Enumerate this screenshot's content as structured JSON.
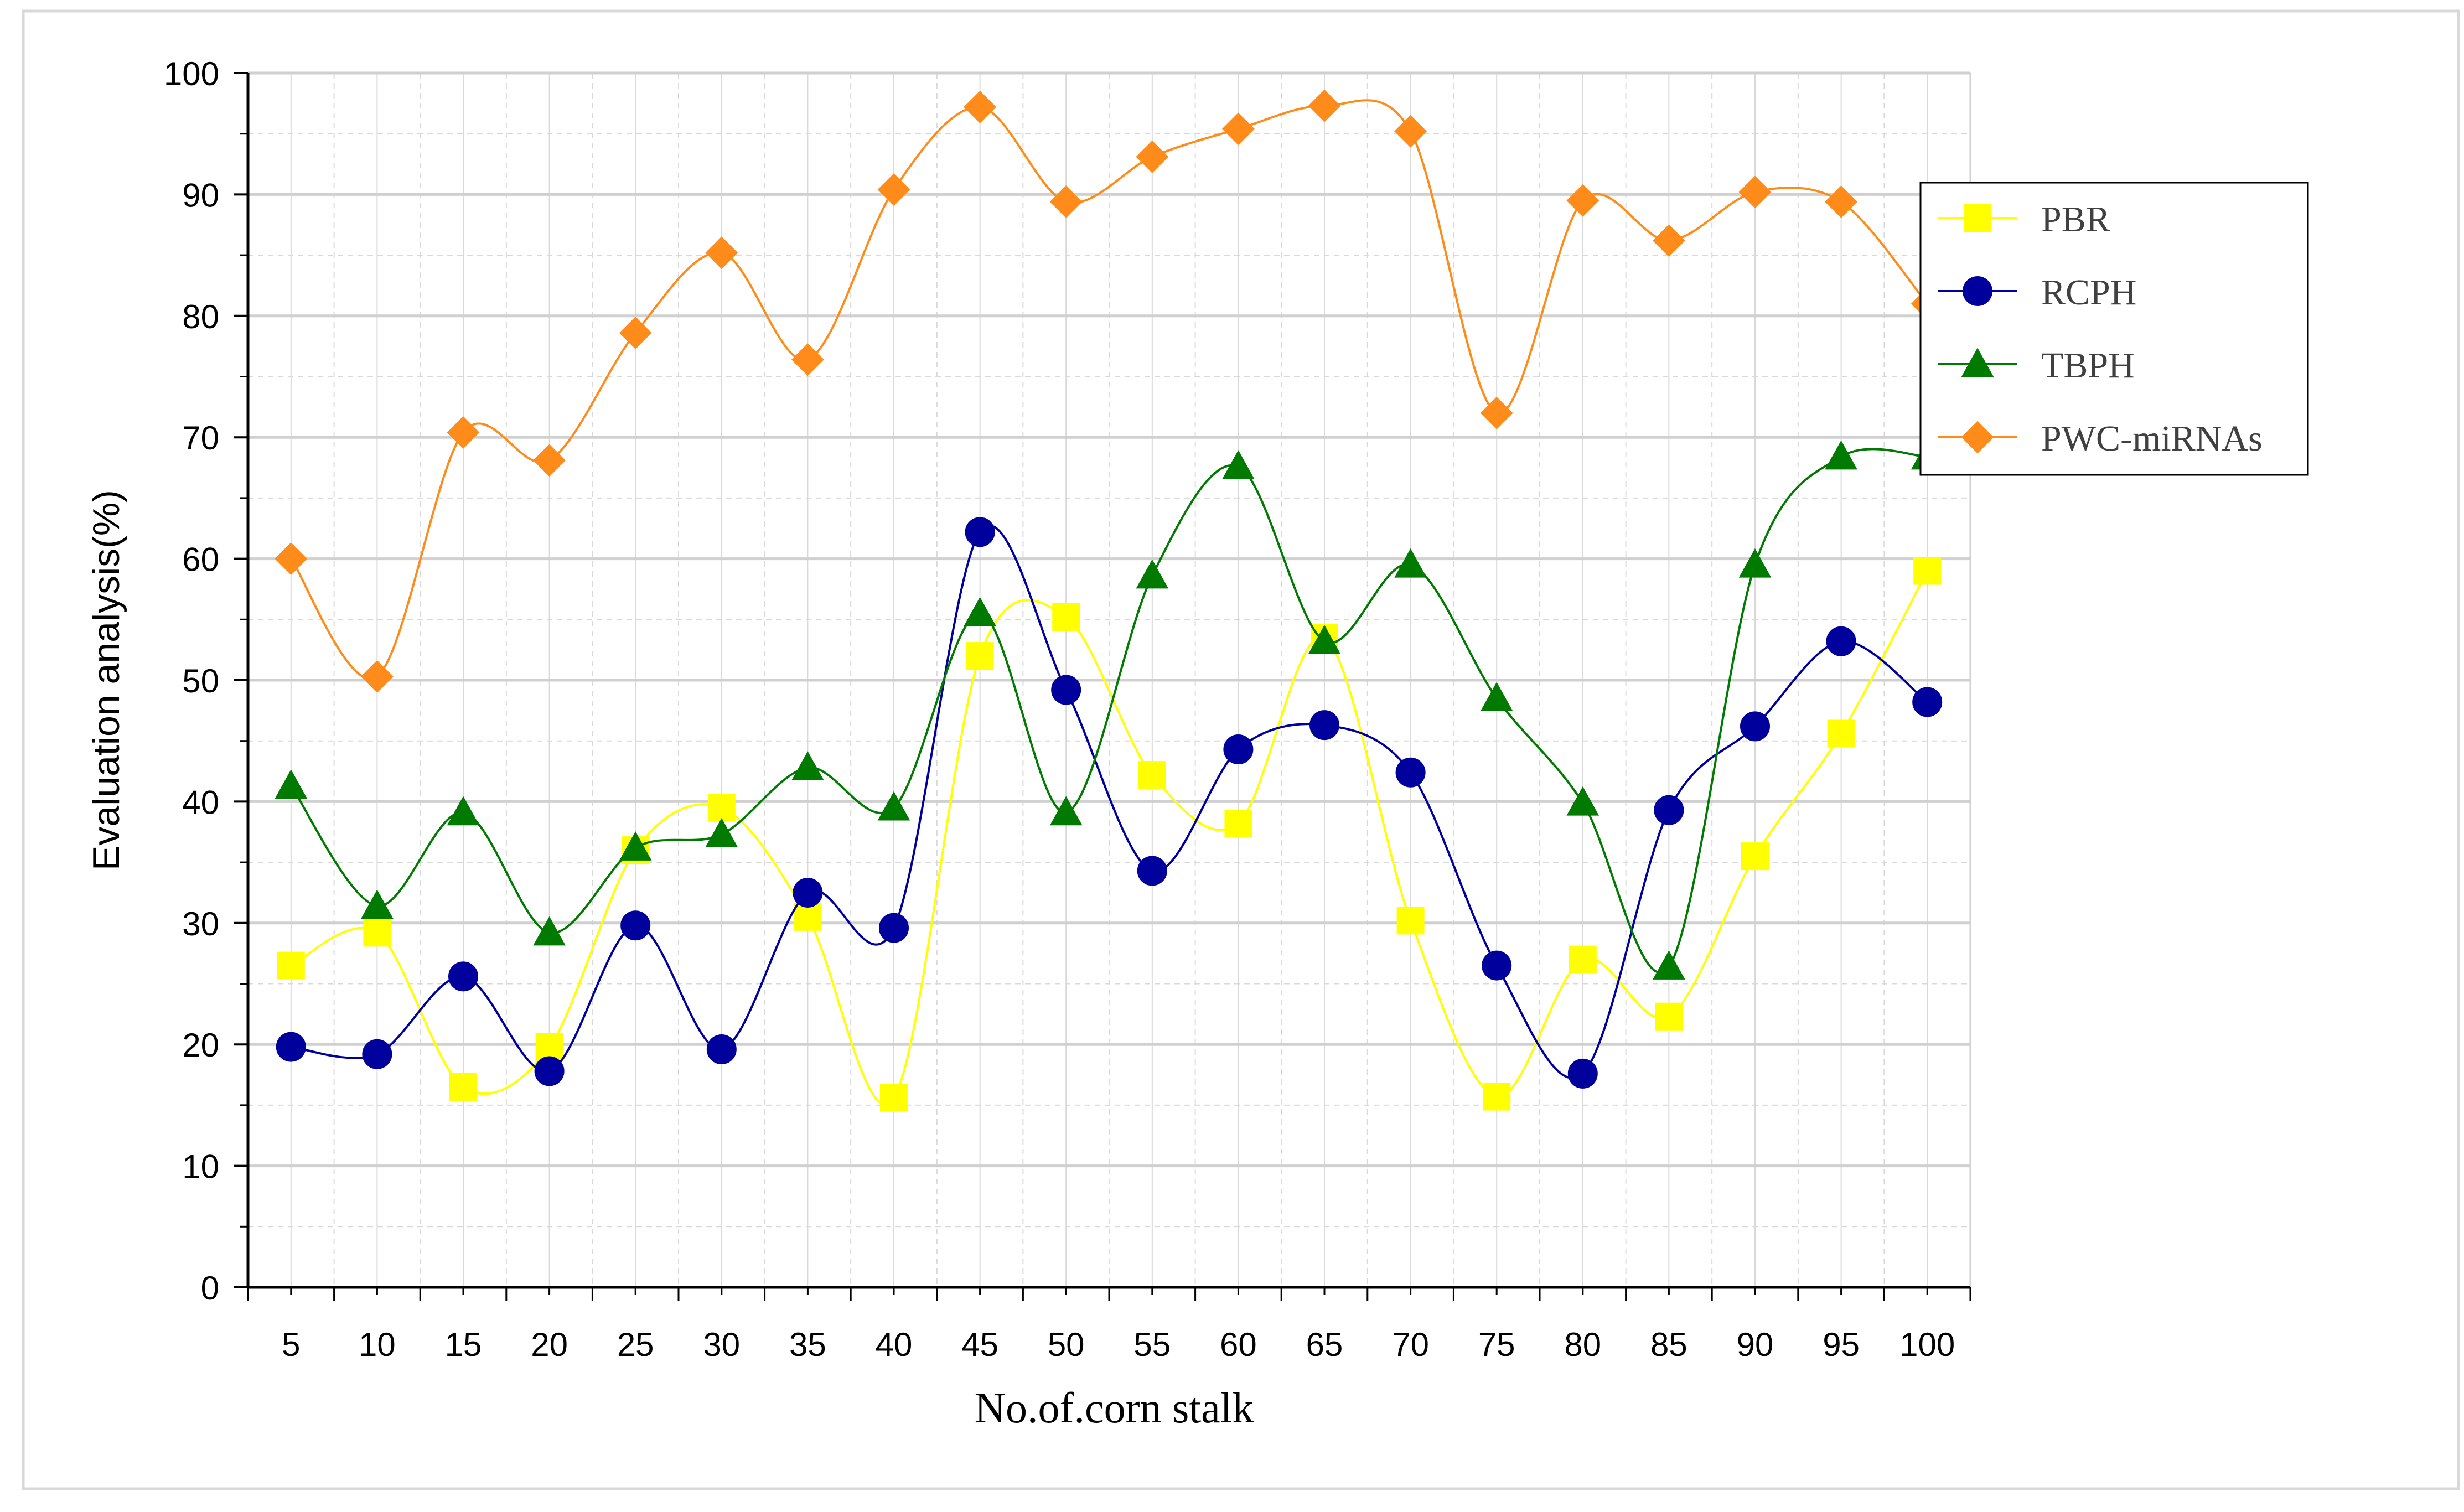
{
  "chart_data": {
    "type": "line",
    "title": "",
    "xlabel": "No.of.corn stalk",
    "ylabel": "Evaluation analysis(%)",
    "categories": [
      "5",
      "10",
      "15",
      "20",
      "25",
      "30",
      "35",
      "40",
      "45",
      "50",
      "55",
      "60",
      "65",
      "70",
      "75",
      "80",
      "85",
      "90",
      "95",
      "100"
    ],
    "ylim": [
      0,
      100
    ],
    "yticks": [
      "0",
      "10",
      "20",
      "30",
      "40",
      "50",
      "60",
      "70",
      "80",
      "90",
      "100"
    ],
    "grid": true,
    "legend_position": "right",
    "series": [
      {
        "name": "PBR",
        "color": "#ffff00",
        "marker": "square",
        "values": [
          26.5,
          29.2,
          16.5,
          19.8,
          36.0,
          39.5,
          30.5,
          15.6,
          52.0,
          55.2,
          42.2,
          38.2,
          53.5,
          30.2,
          15.7,
          27.0,
          22.3,
          35.5,
          45.6,
          59.0
        ]
      },
      {
        "name": "RCPH",
        "color": "#00009c",
        "marker": "circle",
        "values": [
          19.8,
          19.2,
          25.6,
          17.8,
          29.8,
          19.6,
          32.5,
          29.6,
          62.2,
          49.2,
          34.3,
          44.3,
          46.3,
          42.4,
          26.5,
          17.6,
          39.3,
          46.2,
          53.2,
          48.2
        ]
      },
      {
        "name": "TBPH",
        "color": "#007a00",
        "marker": "triangle",
        "values": [
          41.3,
          31.4,
          39.1,
          29.2,
          36.2,
          37.3,
          42.8,
          39.5,
          55.5,
          39.1,
          58.6,
          67.6,
          53.2,
          59.5,
          48.5,
          39.9,
          26.4,
          59.5,
          68.4,
          68.4
        ]
      },
      {
        "name": "PWC-miRNAs",
        "color": "#ff8c1a",
        "marker": "diamond",
        "values": [
          60.0,
          50.3,
          70.4,
          68.1,
          78.6,
          85.2,
          76.4,
          90.4,
          97.2,
          89.4,
          93.1,
          95.4,
          97.3,
          95.2,
          72.0,
          89.5,
          86.2,
          90.2,
          89.4,
          81.0
        ]
      }
    ]
  }
}
